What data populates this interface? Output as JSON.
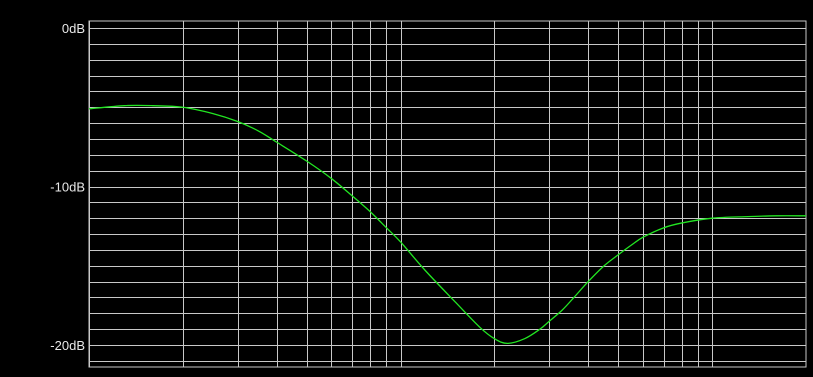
{
  "colors": {
    "background": "#000000",
    "grid": "#c8c8c8",
    "curve": "#22e622",
    "label": "#e8e8e8"
  },
  "chart_data": {
    "type": "line",
    "title": "",
    "xlabel": "",
    "ylabel": "",
    "x_scale": "log",
    "xlim": [
      10,
      2000
    ],
    "ylim": [
      -21,
      0
    ],
    "y_ticks": [
      {
        "value": 0,
        "label": "0dB"
      },
      {
        "value": -10,
        "label": "-10dB"
      },
      {
        "value": -20,
        "label": "-20dB"
      }
    ],
    "y_grid_step": 1,
    "x_grid": [
      10,
      20,
      30,
      40,
      50,
      60,
      70,
      80,
      90,
      100,
      200,
      300,
      400,
      500,
      600,
      700,
      800,
      900,
      1000,
      2000
    ],
    "grid": true,
    "series": [
      {
        "color": "#22e622",
        "x": [
          10,
          13,
          16,
          20,
          25,
          30,
          35,
          40,
          50,
          60,
          70,
          80,
          90,
          100,
          120,
          150,
          180,
          200,
          220,
          250,
          280,
          300,
          330,
          360,
          400,
          450,
          500,
          550,
          600,
          700,
          800,
          1000,
          1300,
          1600,
          2000
        ],
        "y": [
          -5.1,
          -4.9,
          -4.9,
          -5.0,
          -5.4,
          -5.9,
          -6.5,
          -7.2,
          -8.4,
          -9.5,
          -10.6,
          -11.6,
          -12.6,
          -13.5,
          -15.3,
          -17.3,
          -18.9,
          -19.6,
          -19.9,
          -19.6,
          -19.0,
          -18.5,
          -17.8,
          -17.0,
          -16.0,
          -15.0,
          -14.3,
          -13.7,
          -13.2,
          -12.6,
          -12.3,
          -12.0,
          -11.9,
          -11.85,
          -11.85
        ]
      }
    ]
  }
}
